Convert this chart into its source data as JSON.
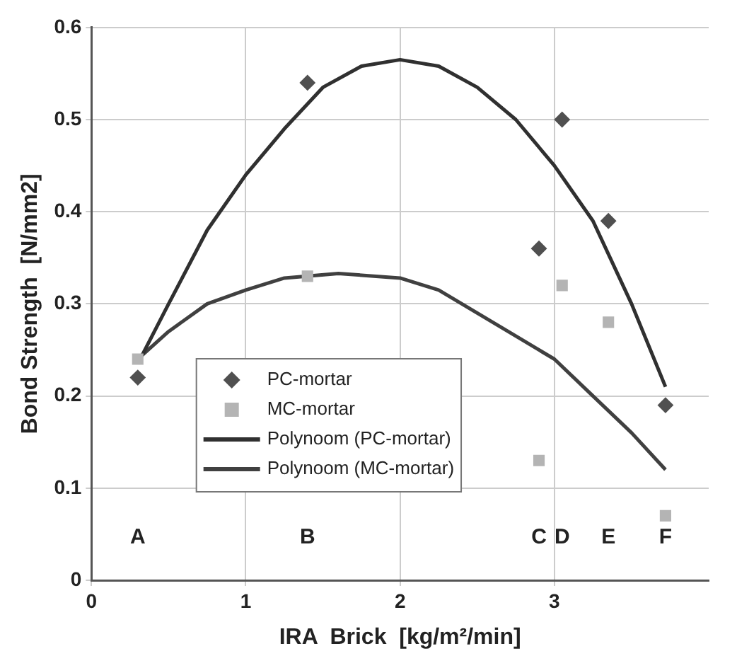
{
  "chart_data": {
    "type": "scatter",
    "xlabel": "IRA  Brick  [kg/m²/min]",
    "ylabel": "Bond Strength  [N/mm2]",
    "xlim": [
      0,
      4
    ],
    "xticks": [
      0,
      1,
      2,
      3
    ],
    "ylim": [
      0,
      0.6
    ],
    "yticks": [
      0,
      0.1,
      0.2,
      0.3,
      0.4,
      0.5,
      0.6
    ],
    "grid": true,
    "legend": "bottom left",
    "annotations": [
      "A",
      "B",
      "C",
      "D",
      "E",
      "F"
    ],
    "series": [
      {
        "name": "PC-mortar",
        "type": "scatter",
        "marker": "diamond",
        "color": "#505050",
        "x": [
          0.3,
          1.4,
          2.9,
          3.05,
          3.35,
          3.72
        ],
        "values": [
          0.22,
          0.54,
          0.36,
          0.5,
          0.39,
          0.19
        ]
      },
      {
        "name": "MC-mortar",
        "type": "scatter",
        "marker": "square",
        "color": "#b4b4b4",
        "x": [
          0.3,
          1.4,
          2.9,
          3.05,
          3.35,
          3.72
        ],
        "values": [
          0.24,
          0.33,
          0.13,
          0.32,
          0.28,
          0.07
        ]
      },
      {
        "name": "Polynoom (PC-mortar)",
        "type": "line",
        "marker": "none",
        "color": "#303030",
        "x": [
          0.3,
          0.5,
          0.75,
          1,
          1.25,
          1.5,
          1.75,
          2,
          2.25,
          2.5,
          2.75,
          3,
          3.25,
          3.5,
          3.72
        ],
        "values": [
          0.235,
          0.3,
          0.38,
          0.44,
          0.49,
          0.535,
          0.558,
          0.565,
          0.558,
          0.535,
          0.5,
          0.45,
          0.39,
          0.3,
          0.21
        ]
      },
      {
        "name": "Polynoom (MC-mortar)",
        "type": "line",
        "marker": "none",
        "color": "#404040",
        "x": [
          0.3,
          0.5,
          0.75,
          1,
          1.25,
          1.6,
          2,
          2.25,
          2.5,
          2.75,
          3,
          3.25,
          3.5,
          3.72
        ],
        "values": [
          0.24,
          0.27,
          0.3,
          0.315,
          0.328,
          0.333,
          0.328,
          0.315,
          0.29,
          0.265,
          0.24,
          0.2,
          0.16,
          0.12
        ]
      }
    ]
  }
}
